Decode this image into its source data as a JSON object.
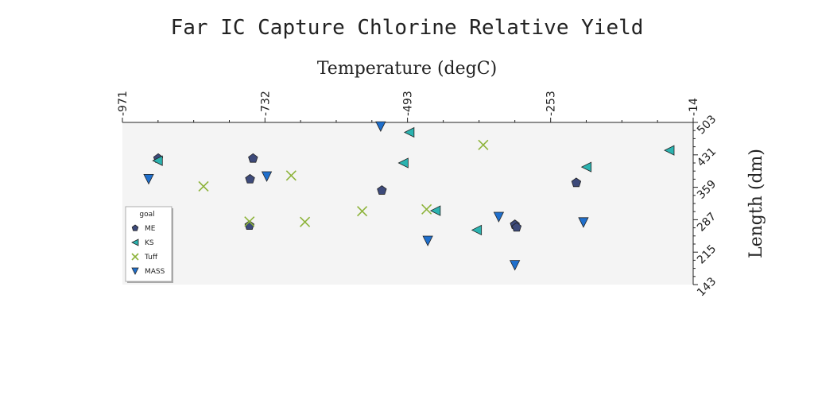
{
  "chart_data": {
    "type": "scatter",
    "title": "Far IC Capture Chlorine Relative Yield",
    "xlabel": "Temperature (degC)",
    "ylabel": "Length (dm)",
    "xlim": [
      -971,
      -14
    ],
    "ylim": [
      143,
      503
    ],
    "x_ticks": [
      "-971",
      "-732",
      "-493",
      "-253",
      "-14"
    ],
    "y_ticks": [
      "143",
      "215",
      "287",
      "359",
      "431",
      "503"
    ],
    "legend_title": "goal",
    "legend_position": "lower-left",
    "grid": false,
    "series": [
      {
        "name": "ME",
        "marker": "pentagon",
        "color": "#3d4a7a",
        "points": [
          {
            "x": -911,
            "y": 423
          },
          {
            "x": -752,
            "y": 423
          },
          {
            "x": -757,
            "y": 377
          },
          {
            "x": -758,
            "y": 274
          },
          {
            "x": -536,
            "y": 352
          },
          {
            "x": -313,
            "y": 276
          },
          {
            "x": -310,
            "y": 270
          },
          {
            "x": -210,
            "y": 369
          }
        ]
      },
      {
        "name": "KS",
        "marker": "triangle-left",
        "color": "#2bb3b0",
        "points": [
          {
            "x": -912,
            "y": 418
          },
          {
            "x": -490,
            "y": 481
          },
          {
            "x": -500,
            "y": 413
          },
          {
            "x": -446,
            "y": 307
          },
          {
            "x": -377,
            "y": 264
          },
          {
            "x": -193,
            "y": 404
          },
          {
            "x": -54,
            "y": 441
          }
        ]
      },
      {
        "name": "Tuff",
        "marker": "x",
        "color": "#8db33a",
        "points": [
          {
            "x": -835,
            "y": 361
          },
          {
            "x": -758,
            "y": 283
          },
          {
            "x": -688,
            "y": 385
          },
          {
            "x": -665,
            "y": 282
          },
          {
            "x": -569,
            "y": 306
          },
          {
            "x": -461,
            "y": 310
          },
          {
            "x": -366,
            "y": 453
          }
        ]
      },
      {
        "name": "MASS",
        "marker": "triangle-down",
        "color": "#1f6fcc",
        "points": [
          {
            "x": -927,
            "y": 377
          },
          {
            "x": -729,
            "y": 383
          },
          {
            "x": -538,
            "y": 494
          },
          {
            "x": -459,
            "y": 240
          },
          {
            "x": -340,
            "y": 293
          },
          {
            "x": -313,
            "y": 186
          },
          {
            "x": -198,
            "y": 281
          }
        ]
      }
    ]
  }
}
